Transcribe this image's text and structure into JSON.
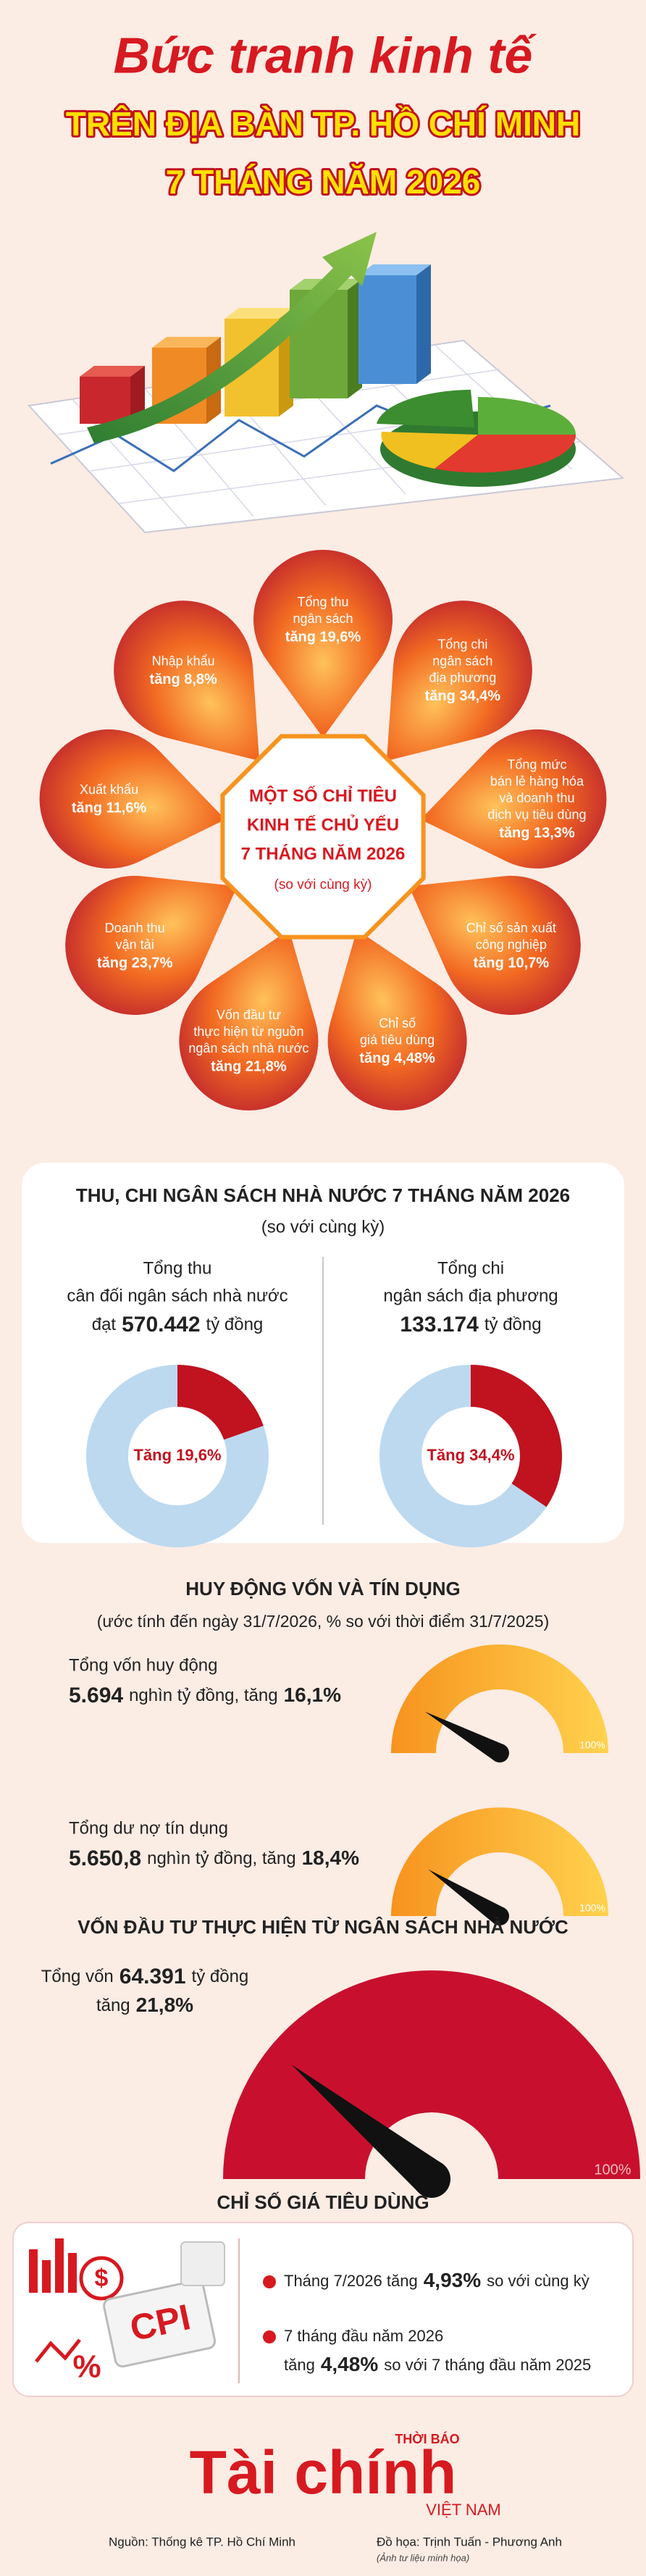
{
  "header": {
    "title_script": "Bức tranh kinh tế",
    "title_lines": [
      "TRÊN ĐỊA BÀN TP. HỒ CHÍ MINH",
      "7 THÁNG NĂM 2026"
    ]
  },
  "indicators": {
    "center_lines": [
      "MỘT SỐ CHỈ TIÊU",
      "KINH TẾ CHỦ YẾU",
      "7 THÁNG NĂM 2026"
    ],
    "center_note": "(so với cùng kỳ)",
    "petals": [
      {
        "lines": [
          "Tổng thu",
          "ngân sách"
        ],
        "change": "tăng 19,6%"
      },
      {
        "lines": [
          "Tổng chi",
          "ngân sách",
          "địa phương"
        ],
        "change": "tăng 34,4%"
      },
      {
        "lines": [
          "Tổng mức",
          "bán lẻ hàng hóa",
          "và doanh thu",
          "dịch vụ tiêu dùng"
        ],
        "change": "tăng 13,3%"
      },
      {
        "lines": [
          "Chỉ số sản xuất",
          "công nghiệp"
        ],
        "change": "tăng 10,7%"
      },
      {
        "lines": [
          "Chỉ số",
          "giá tiêu dùng"
        ],
        "change": "tăng 4,48%"
      },
      {
        "lines": [
          "Vốn đầu tư",
          "thực hiện từ nguồn",
          "ngân sách nhà nước"
        ],
        "change": "tăng 21,8%"
      },
      {
        "lines": [
          "Doanh thu",
          "vận tải"
        ],
        "change": "tăng 23,7%"
      },
      {
        "lines": [
          "Xuất khẩu"
        ],
        "change": "tăng 11,6%"
      },
      {
        "lines": [
          "Nhập khẩu"
        ],
        "change": "tăng 8,8%"
      }
    ]
  },
  "budget": {
    "title": "THU, CHI NGÂN SÁCH NHÀ NƯỚC 7 THÁNG NĂM 2026",
    "subtitle": "(so với cùng kỳ)",
    "items": [
      {
        "lines": [
          "Tổng thu",
          "cân đối ngân sách nhà nước"
        ],
        "prefix": "đạt",
        "amount": "570.442",
        "suffix": "tỷ đồng",
        "value": 19.6,
        "value_label": "Tăng 19,6%"
      },
      {
        "lines": [
          "Tổng chi",
          "ngân sách địa phương"
        ],
        "amount": "133.174",
        "suffix": "tỷ đồng",
        "value": 34.4,
        "value_label": "Tăng 34,4%"
      }
    ]
  },
  "funding": {
    "title": "HUY ĐỘNG VỐN VÀ TÍN DỤNG",
    "subtitle": "(ước tính đến ngày 31/7/2026, % so với thời điểm 31/7/2025)",
    "gauge_max": {
      "value": 100,
      "label": "100%"
    },
    "items": [
      {
        "label": "Tổng vốn huy động",
        "amount": "5.694",
        "unit": "nghìn tỷ đồng, tăng",
        "value": 16.1,
        "value_label": "16,1%"
      },
      {
        "label": "Tổng dư nợ tín dụng",
        "amount": "5.650,8",
        "unit": "nghìn tỷ đồng, tăng",
        "value": 18.4,
        "value_label": "18,4%"
      }
    ]
  },
  "investment": {
    "title": "VỐN ĐẦU TƯ THỰC HIỆN TỪ NGÂN SÁCH NHÀ NƯỚC",
    "lead": "Tổng vốn",
    "amount": "64.391",
    "unit": "tỷ đồng",
    "change_word": "tăng",
    "value": 21.8,
    "value_label": "21,8%",
    "gauge_max": {
      "value": 100,
      "label": "100%"
    }
  },
  "cpi": {
    "title": "CHỈ SỐ GIÁ TIÊU DÙNG",
    "icon_labels": [
      "CPI",
      "$",
      "%"
    ],
    "items": [
      {
        "lead": "Tháng 7/2026 tăng",
        "value_label": "4,93%",
        "tail": "so với cùng kỳ"
      },
      {
        "first_line": "7 tháng đầu năm 2026",
        "lead": "tăng",
        "value_label": "4,48%",
        "tail": "so với 7 tháng đầu năm 2025"
      }
    ]
  },
  "footer": {
    "logo_top": "THỜI BÁO",
    "logo_main": "Tài chính",
    "logo_bottom": "VIỆT NAM",
    "source": "Nguồn: Thống kê TP. Hồ Chí Minh",
    "credit": "Đồ họa: Trịnh Tuấn - Phương Anh",
    "photo_note": "(Ảnh tư liệu minh họa)"
  }
}
